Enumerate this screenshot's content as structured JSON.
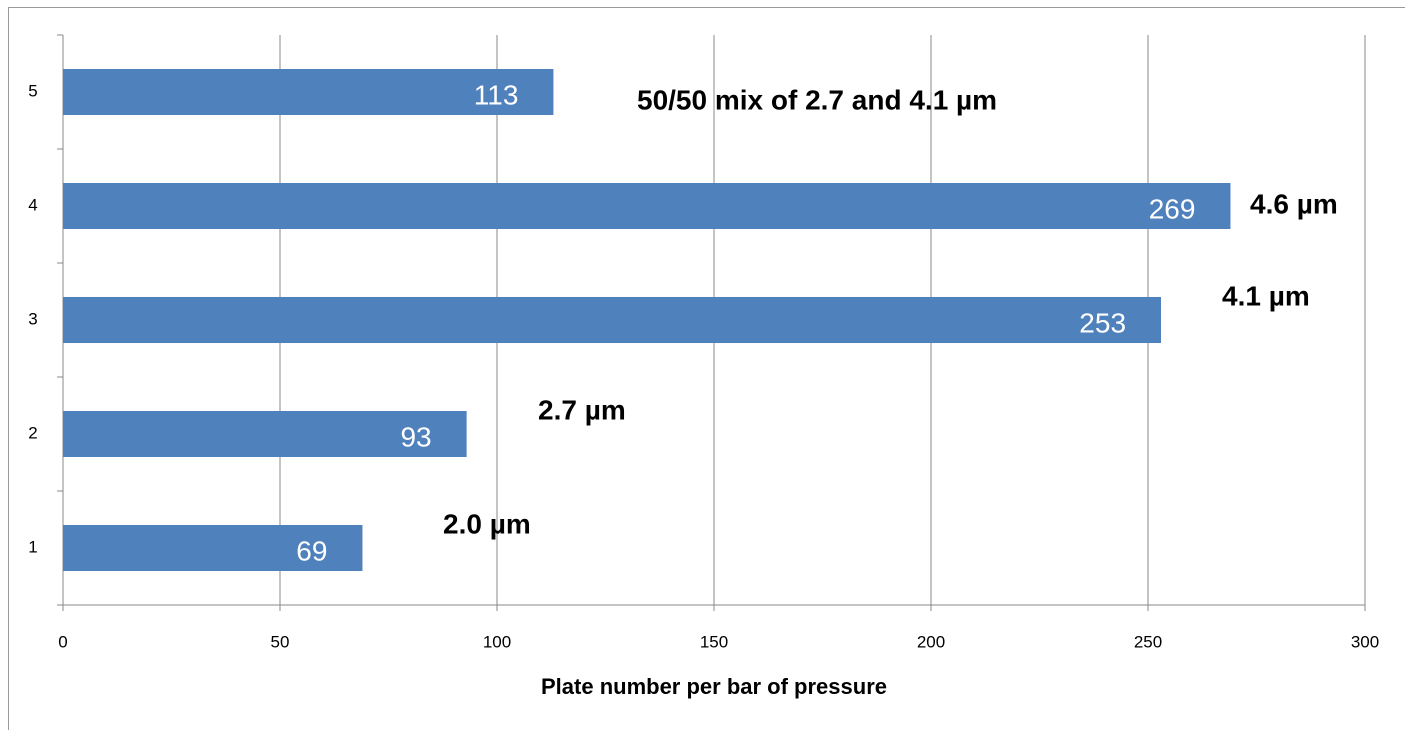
{
  "chart_data": {
    "type": "barh",
    "categories": [
      "1",
      "2",
      "3",
      "4",
      "5"
    ],
    "values": [
      69,
      93,
      253,
      269,
      113
    ],
    "color": "#4f81bd",
    "xlabel": "Plate number per bar of pressure",
    "xlim": [
      0,
      300
    ],
    "xticks": [
      0,
      50,
      100,
      150,
      200,
      250,
      300
    ],
    "grid": true,
    "annotations": [
      "2.0 µm",
      "2.7 µm",
      "4.1 µm",
      "4.6 µm",
      "50/50 mix of 2.7 and 4.1 µm"
    ]
  }
}
